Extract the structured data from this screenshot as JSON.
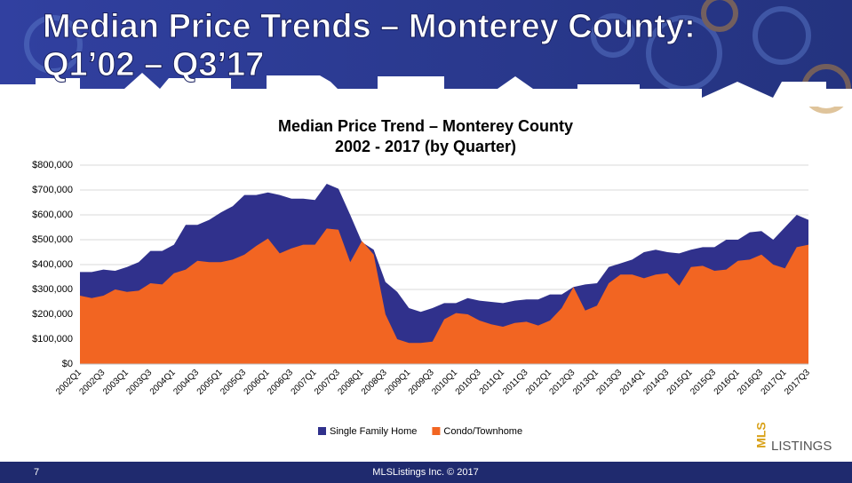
{
  "slide": {
    "title": [
      "Median Price Trends – Monterey County:",
      "Q1’02 – Q3’17"
    ],
    "page_number": "7",
    "footer": "MLSListings Inc. © 2017",
    "logo": [
      "MLS",
      "LISTINGS"
    ]
  },
  "chart_data": {
    "type": "area",
    "title": "Median Price Trend – Monterey County",
    "subtitle": "2002 - 2017 (by Quarter)",
    "categories": [
      "2002Q1",
      null,
      "2002Q3",
      null,
      "2003Q1",
      null,
      "2003Q3",
      null,
      "2004Q1",
      null,
      "2004Q3",
      null,
      "2005Q1",
      null,
      "2005Q3",
      null,
      "2006Q1",
      null,
      "2006Q3",
      null,
      "2007Q1",
      null,
      "2007Q3",
      null,
      "2008Q1",
      null,
      "2008Q3",
      null,
      "2009Q1",
      null,
      "2009Q3",
      null,
      "2010Q1",
      null,
      "2010Q3",
      null,
      "2011Q1",
      null,
      "2011Q3",
      null,
      "2012Q1",
      null,
      "2012Q3",
      null,
      "2013Q1",
      null,
      "2013Q3",
      null,
      "2014Q1",
      null,
      "2014Q3",
      null,
      "2015Q1",
      null,
      "2015Q3",
      null,
      "2016Q1",
      null,
      "2016Q3",
      null,
      "2017Q1",
      null,
      "2017Q3"
    ],
    "series": [
      {
        "name": "Single Family Home",
        "color": "#30318c",
        "values": [
          370000,
          370000,
          380000,
          375000,
          390000,
          410000,
          455000,
          455000,
          480000,
          560000,
          560000,
          580000,
          610000,
          635000,
          680000,
          680000,
          690000,
          680000,
          665000,
          665000,
          660000,
          725000,
          705000,
          600000,
          490000,
          460000,
          330000,
          290000,
          225000,
          210000,
          225000,
          245000,
          245000,
          265000,
          255000,
          250000,
          245000,
          255000,
          260000,
          260000,
          280000,
          280000,
          310000,
          320000,
          325000,
          390000,
          405000,
          420000,
          450000,
          460000,
          450000,
          445000,
          460000,
          470000,
          470000,
          500000,
          500000,
          530000,
          535000,
          500000,
          550000,
          600000,
          580000
        ]
      },
      {
        "name": "Condo/Townhome",
        "color": "#f26522",
        "values": [
          275000,
          265000,
          275000,
          300000,
          290000,
          295000,
          325000,
          320000,
          365000,
          380000,
          415000,
          410000,
          410000,
          420000,
          440000,
          475000,
          505000,
          445000,
          465000,
          480000,
          480000,
          545000,
          540000,
          410000,
          495000,
          440000,
          200000,
          100000,
          85000,
          85000,
          90000,
          180000,
          205000,
          200000,
          175000,
          160000,
          150000,
          165000,
          170000,
          155000,
          175000,
          225000,
          310000,
          215000,
          235000,
          325000,
          360000,
          360000,
          345000,
          360000,
          365000,
          315000,
          390000,
          395000,
          375000,
          380000,
          415000,
          420000,
          440000,
          400000,
          385000,
          470000,
          480000
        ]
      }
    ],
    "ylim": [
      0,
      800000
    ],
    "yticks": [
      {
        "value": 0,
        "label": "$0"
      },
      {
        "value": 100000,
        "label": "$100,000"
      },
      {
        "value": 200000,
        "label": "$200,000"
      },
      {
        "value": 300000,
        "label": "$300,000"
      },
      {
        "value": 400000,
        "label": "$400,000"
      },
      {
        "value": 500000,
        "label": "$500,000"
      },
      {
        "value": 600000,
        "label": "$600,000"
      },
      {
        "value": 700000,
        "label": "$700,000"
      },
      {
        "value": 800000,
        "label": "$800,000"
      }
    ],
    "grid": true,
    "legend": "bottom"
  }
}
